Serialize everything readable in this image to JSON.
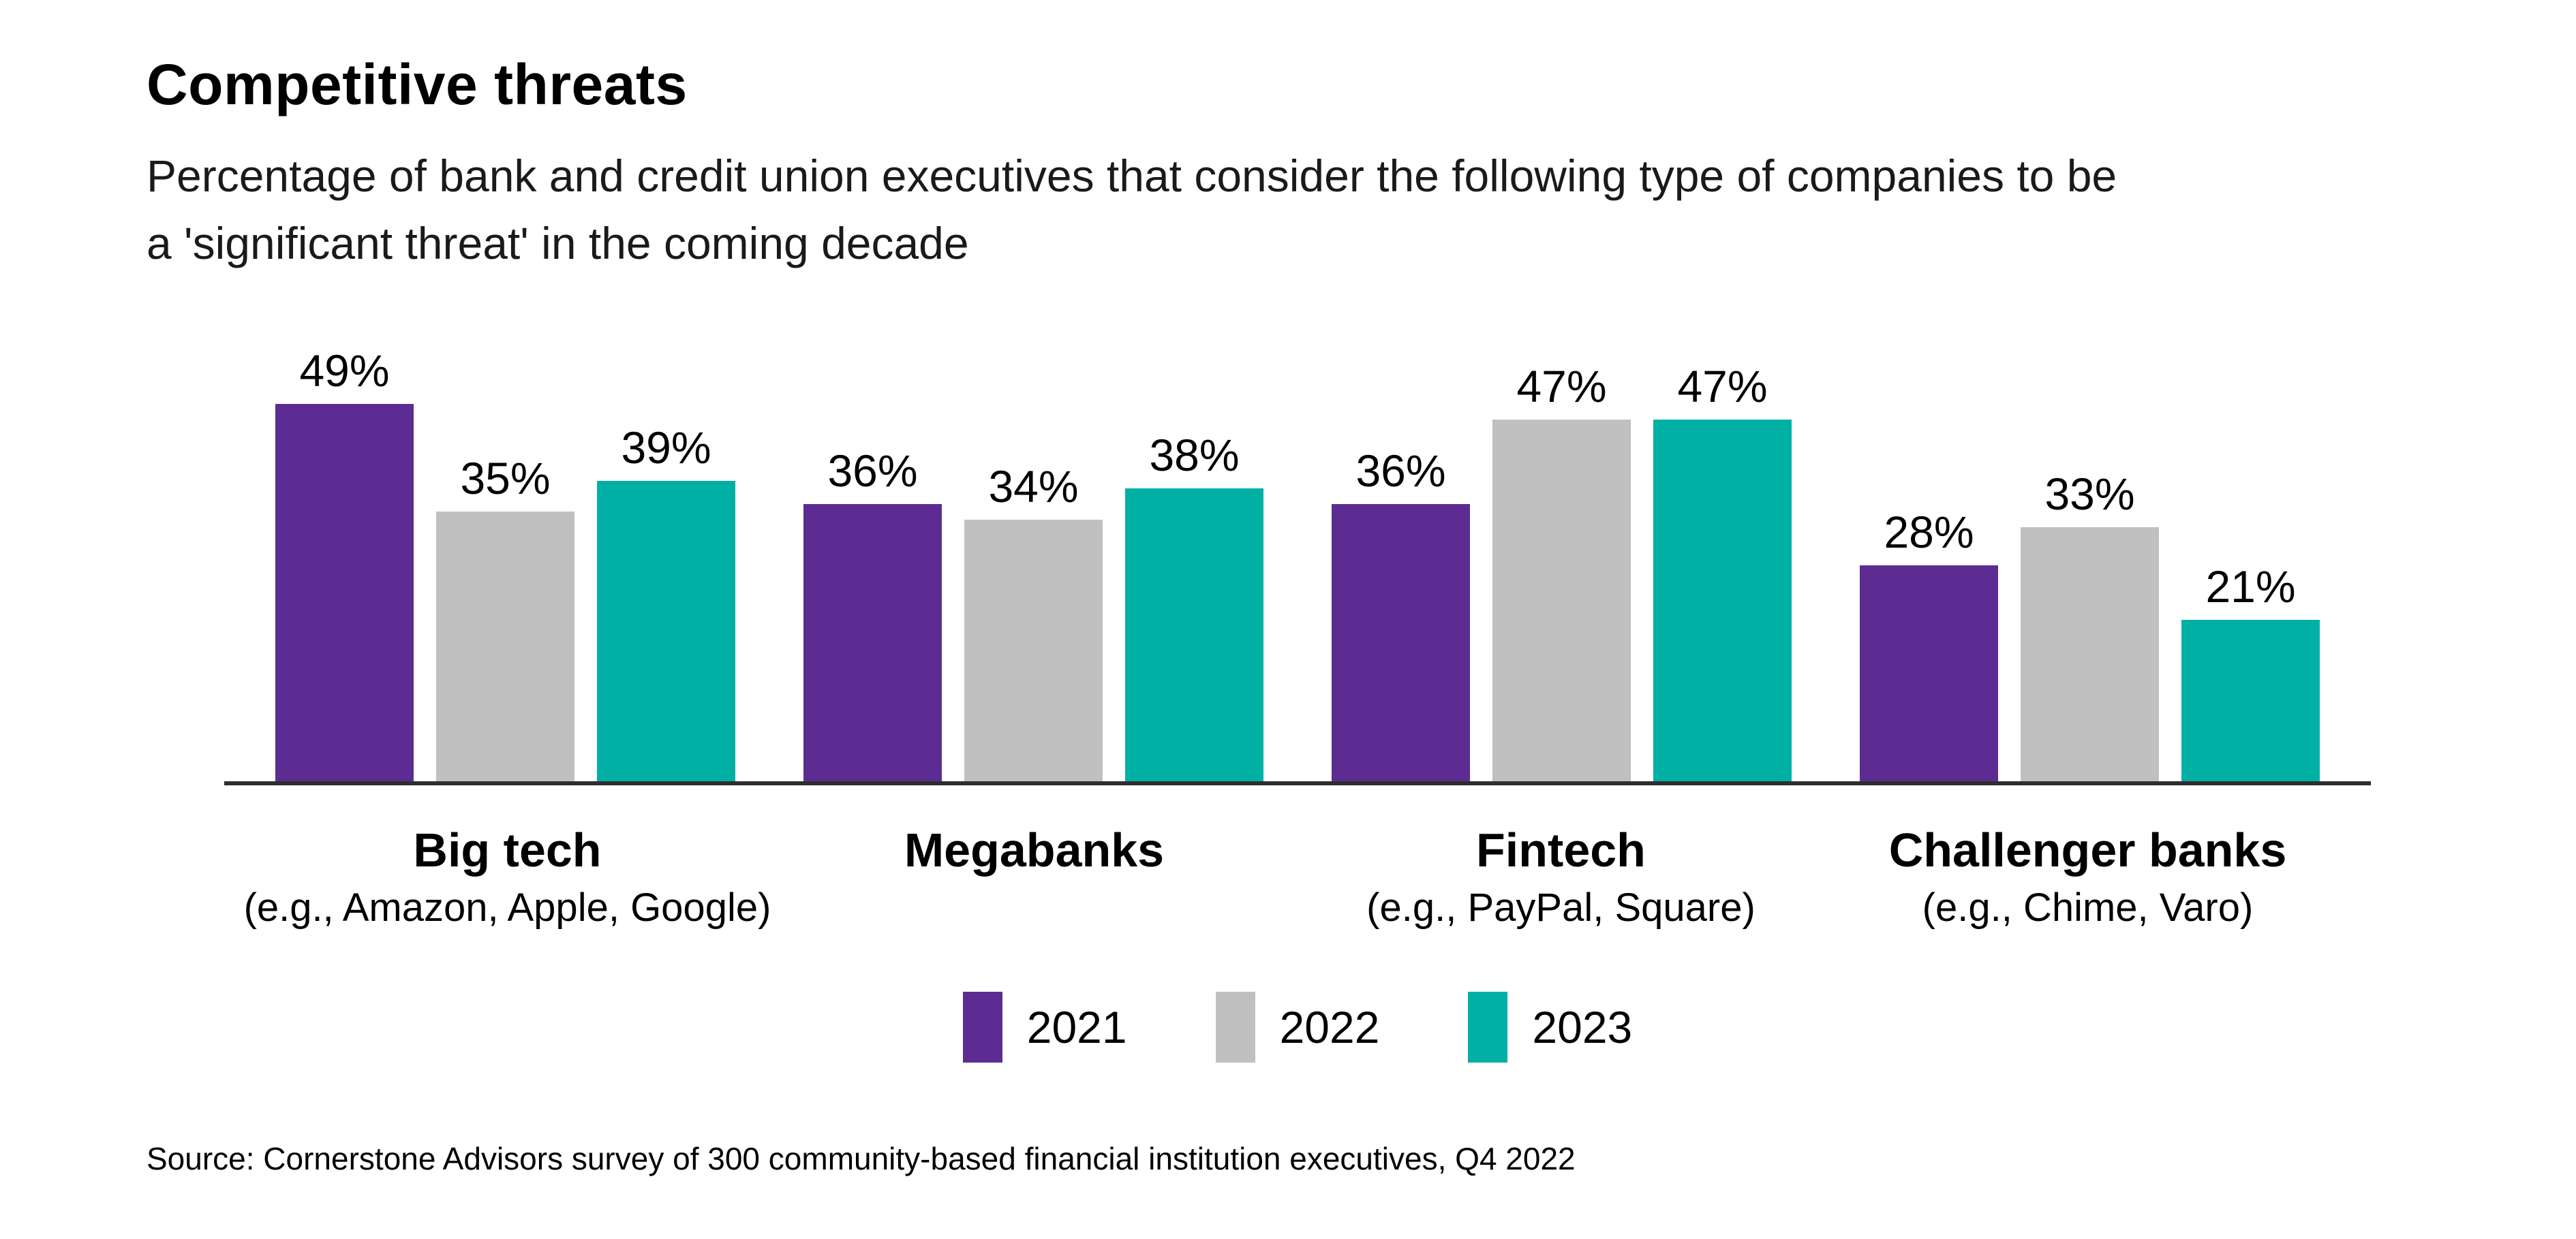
{
  "header": {
    "title": "Competitive threats",
    "subtitle_lines": [
      "Percentage of bank and credit union executives that consider the following type of companies to be",
      "a 'significant threat' in the coming decade"
    ]
  },
  "colors": {
    "2021": "#5C2C92",
    "2022": "#C0C0C0",
    "2023": "#00B0A5",
    "axis": "#2E2E2E",
    "text": "#000000",
    "background": "#FFFFFF"
  },
  "chart_data": {
    "type": "bar",
    "title": "Competitive threats",
    "categories": [
      "Big tech",
      "Megabanks",
      "Fintech",
      "Challenger banks"
    ],
    "category_sublabels": [
      "(e.g., Amazon, Apple, Google)",
      "",
      "(e.g., PayPal, Square)",
      "(e.g., Chime, Varo)"
    ],
    "series": [
      {
        "name": "2021",
        "values": [
          49,
          36,
          36,
          28
        ]
      },
      {
        "name": "2022",
        "values": [
          35,
          34,
          47,
          33
        ]
      },
      {
        "name": "2023",
        "values": [
          39,
          38,
          47,
          21
        ]
      }
    ],
    "value_suffix": "%",
    "ylim": [
      0,
      53
    ],
    "grid": false,
    "y_axis_labels": false,
    "data_labels": true,
    "legend_position": "bottom"
  },
  "footer": {
    "source": "Source: Cornerstone Advisors survey of 300 community-based financial institution executives, Q4 2022"
  }
}
